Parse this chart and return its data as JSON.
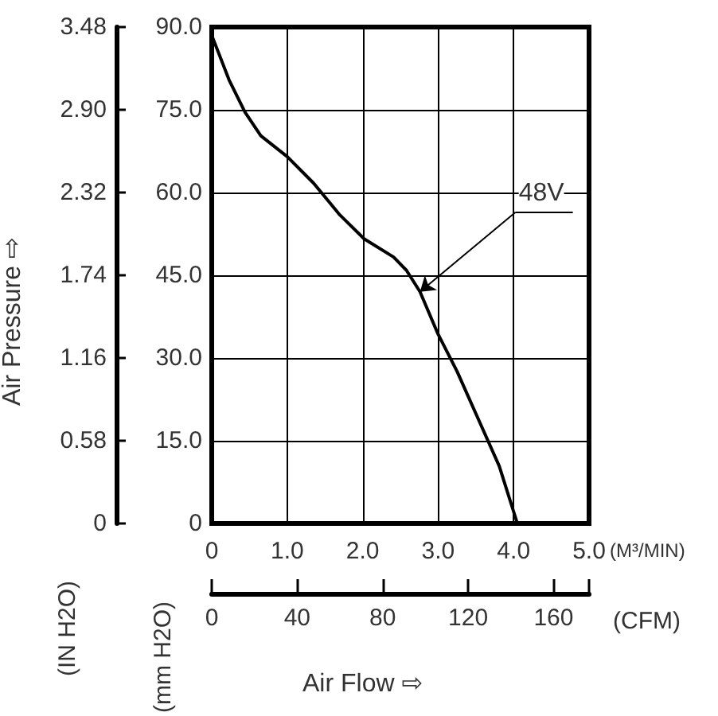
{
  "chart_data": {
    "type": "line",
    "xlabel": "(M³/MIN)",
    "x2label": "(CFM)",
    "ylabel": "(mm H2O)",
    "y2label": "(IN H2O)",
    "annotations": [
      "Air Pressure ⇨",
      "Air Flow ⇨",
      {
        "text": "48V",
        "x": 2.76,
        "y": 42.0
      }
    ],
    "x": [
      0,
      0.23,
      0.44,
      0.65,
      1.0,
      1.35,
      1.7,
      2.02,
      2.41,
      2.58,
      2.76,
      3.0,
      3.25,
      3.53,
      3.81,
      4.05
    ],
    "series": [
      {
        "color": "#000000",
        "values": [
          88.5,
          80.4,
          74.6,
          70.3,
          66.5,
          61.7,
          55.9,
          51.6,
          48.3,
          45.9,
          42.0,
          34.3,
          27.6,
          19.0,
          10.4,
          0
        ]
      }
    ],
    "xlim": [
      0,
      5
    ],
    "xticks": [
      0,
      {
        "value": 1,
        "label": "1.0"
      },
      {
        "value": 2,
        "label": "2.0"
      },
      {
        "value": 3,
        "label": "3.0"
      },
      {
        "value": 4,
        "label": "4.0"
      },
      {
        "value": 5,
        "label": "5.0"
      }
    ],
    "x2lim": [
      0,
      176.6
    ],
    "x2ticks": [
      0,
      40,
      80,
      120,
      160
    ],
    "ylim": [
      0,
      90
    ],
    "yticks": [
      0,
      {
        "value": 15,
        "label": "15.0"
      },
      {
        "value": 30,
        "label": "30.0"
      },
      {
        "value": 45,
        "label": "45.0"
      },
      {
        "value": 60,
        "label": "60.0"
      },
      {
        "value": 75,
        "label": "75.0"
      },
      {
        "value": 90,
        "label": "90.0"
      }
    ],
    "y2lim": [
      0,
      3.48
    ],
    "y2ticks": [
      0,
      0.58,
      1.16,
      1.74,
      2.32,
      {
        "value": 2.9,
        "label": "2.90"
      },
      3.48
    ],
    "grid": true,
    "marker": "none",
    "line_style": "solid"
  }
}
